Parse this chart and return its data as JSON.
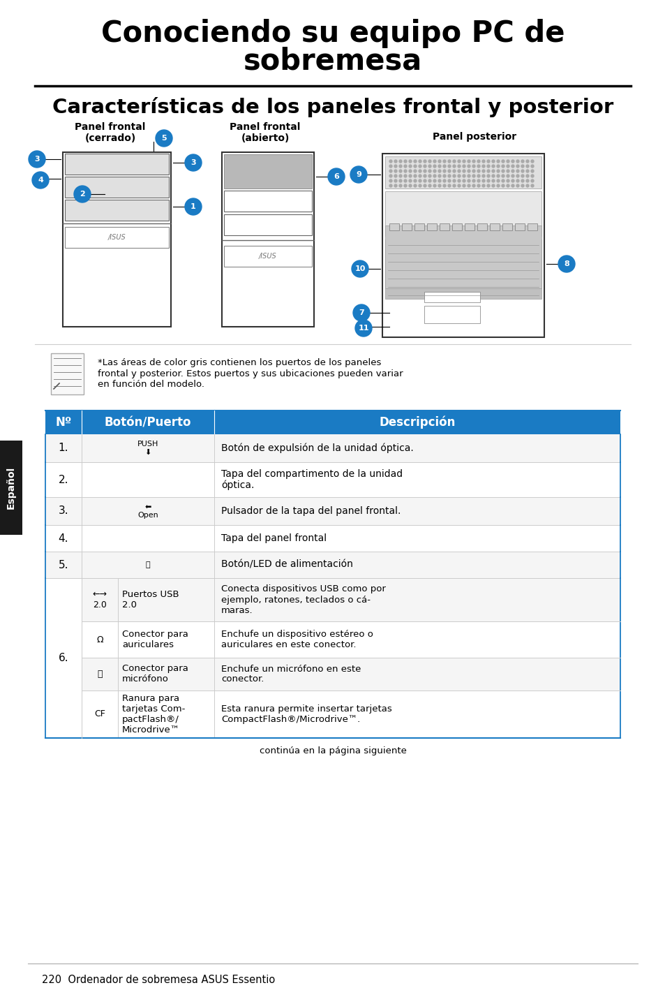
{
  "title_line1": "Conociendo su equipo PC de",
  "title_line2": "sobremesa",
  "subtitle": "Características de los paneles frontal y posterior",
  "bg_color": "#ffffff",
  "header_bg": "#1a7bc4",
  "header_text_color": "#ffffff",
  "table_border_color": "#1a7bc4",
  "inner_border_color": "#cccccc",
  "sidebar_bg": "#1a1a1a",
  "sidebar_text": "Español",
  "note_text": "*Las áreas de color gris contienen los puertos de los paneles\nfrontal y posterior. Estos puertos y sus ubicaciones pueden variar\nen función del modelo.",
  "footer_text": "continúa en la página siguiente",
  "bottom_text": "220  Ordenador de sobremesa ASUS Essentio",
  "panel_label1": "Panel frontal\n(cerrado)",
  "panel_label2": "Panel frontal\n(abierto)",
  "panel_label3": "Panel posterior",
  "row1_desc": "Botón de expulsión de la unidad óptica.",
  "row2_desc": "Tapa del compartimento de la unidad\nóptica.",
  "row3_desc": "Pulsador de la tapa del panel frontal.",
  "row4_desc": "Tapa del panel frontal",
  "row5_desc": "Botón/LED de alimentación",
  "row6a_port": "Puertos USB\n2.0",
  "row6a_desc": "Conecta dispositivos USB como por\nejemplo, ratones, teclados o cá-\nmaras.",
  "row6b_port": "Conector para\nauriculares",
  "row6b_desc": "Enchufe un dispositivo estéreo o\nauriculares en este conector.",
  "row6c_port": "Conector para\nmicrófono",
  "row6c_desc": "Enchufe un micrófono en este\nconector.",
  "row6d_port": "Ranura para\ntarjetas Com-\npactFlash®/\nMicrodrive™",
  "row6d_desc": "Esta ranura permite insertar tarjetas\nCompactFlash®/Microdrive™."
}
